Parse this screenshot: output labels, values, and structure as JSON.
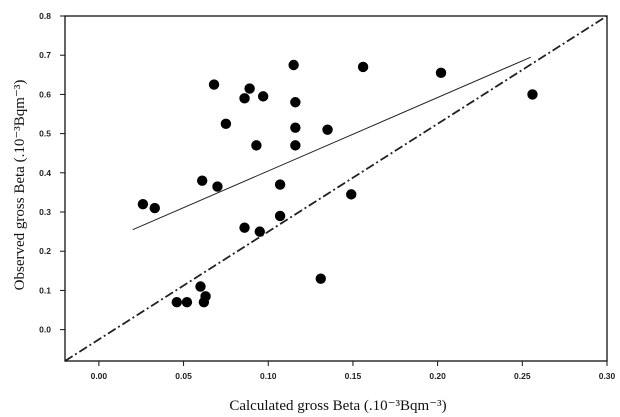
{
  "chart_data": {
    "type": "scatter",
    "title": "",
    "xlabel": "Calculated gross Beta (.10⁻³Bqm⁻³)",
    "ylabel": "Observed gross Beta (.10⁻³Bqm⁻³)",
    "xlim": [
      -0.02,
      0.3
    ],
    "ylim": [
      -0.08,
      0.8
    ],
    "x_ticks": [
      "0.00",
      "0.05",
      "0.10",
      "0.15",
      "0.20",
      "0.25",
      "0.30"
    ],
    "y_ticks": [
      "0.0",
      "0.1",
      "0.2",
      "0.3",
      "0.4",
      "0.5",
      "0.6",
      "0.7",
      "0.8"
    ],
    "grid": false,
    "legend": "none",
    "points": [
      {
        "x": 0.026,
        "y": 0.32
      },
      {
        "x": 0.033,
        "y": 0.31
      },
      {
        "x": 0.046,
        "y": 0.07
      },
      {
        "x": 0.052,
        "y": 0.07
      },
      {
        "x": 0.06,
        "y": 0.11
      },
      {
        "x": 0.061,
        "y": 0.38
      },
      {
        "x": 0.062,
        "y": 0.07
      },
      {
        "x": 0.063,
        "y": 0.085
      },
      {
        "x": 0.068,
        "y": 0.625
      },
      {
        "x": 0.07,
        "y": 0.365
      },
      {
        "x": 0.075,
        "y": 0.525
      },
      {
        "x": 0.086,
        "y": 0.59
      },
      {
        "x": 0.086,
        "y": 0.26
      },
      {
        "x": 0.089,
        "y": 0.615
      },
      {
        "x": 0.093,
        "y": 0.47
      },
      {
        "x": 0.095,
        "y": 0.25
      },
      {
        "x": 0.097,
        "y": 0.595
      },
      {
        "x": 0.107,
        "y": 0.37
      },
      {
        "x": 0.107,
        "y": 0.29
      },
      {
        "x": 0.115,
        "y": 0.675
      },
      {
        "x": 0.116,
        "y": 0.58
      },
      {
        "x": 0.116,
        "y": 0.515
      },
      {
        "x": 0.116,
        "y": 0.47
      },
      {
        "x": 0.131,
        "y": 0.13
      },
      {
        "x": 0.135,
        "y": 0.51
      },
      {
        "x": 0.149,
        "y": 0.345
      },
      {
        "x": 0.156,
        "y": 0.67
      },
      {
        "x": 0.202,
        "y": 0.655
      },
      {
        "x": 0.256,
        "y": 0.6
      }
    ],
    "lines": [
      {
        "style": "solid",
        "x": [
          0.02,
          0.255
        ],
        "y": [
          0.255,
          0.695
        ]
      },
      {
        "style": "dash-dot",
        "x": [
          -0.02,
          0.3
        ],
        "y": [
          -0.08,
          0.8
        ]
      }
    ],
    "colors": {
      "points": "#000000",
      "axes": "#111111",
      "lines": "#222222"
    }
  }
}
